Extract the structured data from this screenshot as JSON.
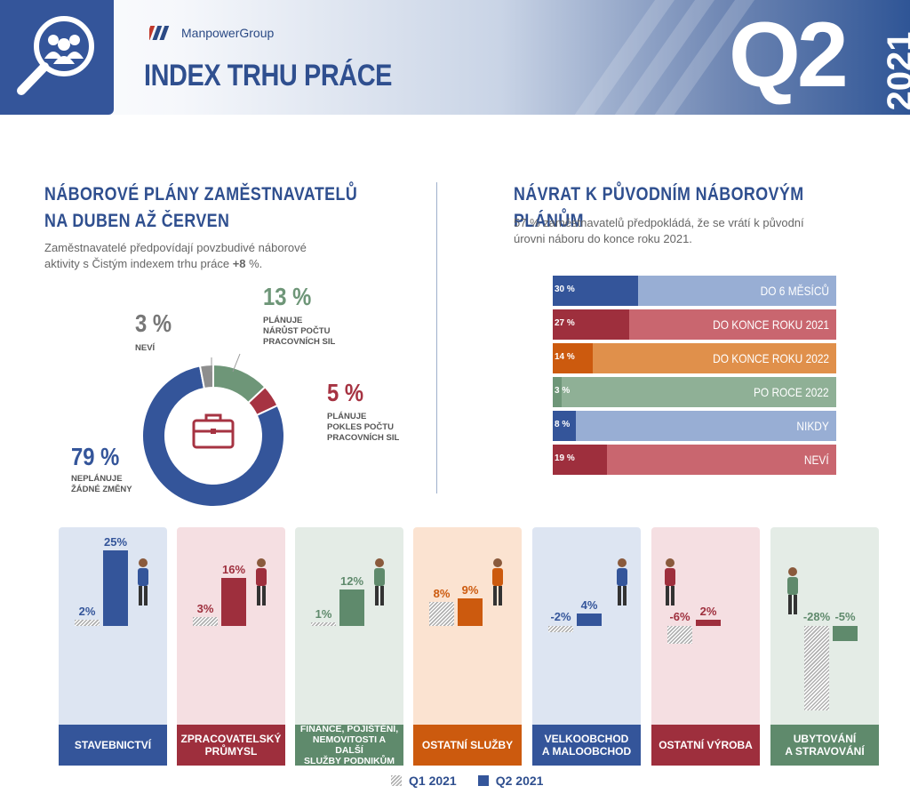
{
  "header": {
    "brand": "ManpowerGroup",
    "title": "INDEX TRHU PRÁCE",
    "quarter": "Q2",
    "year": "2021",
    "colors": {
      "primary": "#2f4f8f",
      "box": "#34559a"
    }
  },
  "left": {
    "title_line1": "NÁBOROVÉ PLÁNY ZAMĚSTNAVATELŮ",
    "title_line2": "NA DUBEN AŽ ČERVEN",
    "desc_line1": "Zaměstnavatelé předpovídají povzbudivé náborové",
    "desc_line2_a": "aktivity s Čistým indexem trhu práce ",
    "desc_line2_b": "+8",
    "desc_line2_c": " %.",
    "labels": {
      "increase_pct": "13 %",
      "increase_l1": "PLÁNUJE",
      "increase_l2": "NÁRŮST POČTU",
      "increase_l3": "PRACOVNÍCH SIL",
      "decrease_pct": "5 %",
      "decrease_l1": "PLÁNUJE",
      "decrease_l2": "POKLES POČTU",
      "decrease_l3": "PRACOVNÍCH SIL",
      "dontknow_pct": "3 %",
      "dontknow_l1": "NEVÍ",
      "nochange_pct": "79 %",
      "nochange_l1": "NEPLÁNUJE",
      "nochange_l2": "ŽÁDNÉ ZMĚNY"
    }
  },
  "right": {
    "title": "NÁVRAT K PŮVODNÍM NÁBOROVÝM PLÁNŮM",
    "desc_line1": "57 % zaměstnavatelů předpokládá, že se vrátí k původní",
    "desc_line2": "úrovni náboru do konce roku 2021."
  },
  "legend": {
    "q1": "Q1 2021",
    "q2": "Q2 2021"
  },
  "chart_data": [
    {
      "type": "pie",
      "slices": [
        {
          "name": "PLÁNUJE NÁRŮST POČTU PRACOVNÍCH SIL",
          "value": 13,
          "color": "#6e9678"
        },
        {
          "name": "PLÁNUJE POKLES POČTU PRACOVNÍCH SIL",
          "value": 5,
          "color": "#a63342"
        },
        {
          "name": "NEPLÁNUJE ŽÁDNÉ ZMĚNY",
          "value": 79,
          "color": "#34559a"
        },
        {
          "name": "NEVÍ",
          "value": 3,
          "color": "#8e8e8e"
        }
      ]
    },
    {
      "type": "bar",
      "orientation": "horizontal",
      "categories": [
        "DO 6 MĚSÍCŮ",
        "DO KONCE ROKU 2021",
        "DO KONCE ROKU 2022",
        "PO ROCE 2022",
        "NIKDY",
        "NEVÍ"
      ],
      "values": [
        30,
        27,
        14,
        3,
        8,
        19
      ],
      "value_labels": [
        "30 %",
        "27 %",
        "14 %",
        "3 %",
        "8 %",
        "19 %"
      ],
      "colors": [
        {
          "fill": "#34559a",
          "rest": "#98aed4"
        },
        {
          "fill": "#9e2f3d",
          "rest": "#c9666f"
        },
        {
          "fill": "#cc5a0e",
          "rest": "#e0904b"
        },
        {
          "fill": "#6e9678",
          "rest": "#8fb096"
        },
        {
          "fill": "#34559a",
          "rest": "#98aed4"
        },
        {
          "fill": "#9e2f3d",
          "rest": "#c9666f"
        }
      ]
    },
    {
      "type": "bar",
      "categories": [
        "STAVEBNICTVÍ",
        "ZPRACOVATELSKÝ PRŮMYSL",
        "FINANCE, POJIŠTĚNÍ, NEMOVITOSTI A DALŠÍ SLUŽBY PODNIKŮM",
        "OSTATNÍ SLUŽBY",
        "VELKOOBCHOD A MALOOBCHOD",
        "OSTATNÍ VÝROBA",
        "UBYTOVÁNÍ A STRAVOVÁNÍ"
      ],
      "category_lines": [
        [
          "STAVEBNICTVÍ"
        ],
        [
          "ZPRACOVATELSKÝ",
          "PRŮMYSL"
        ],
        [
          "FINANCE, POJIŠTĚNÍ,",
          "NEMOVITOSTI A DALŠÍ",
          "SLUŽBY PODNIKŮM"
        ],
        [
          "OSTATNÍ SLUŽBY"
        ],
        [
          "VELKOOBCHOD",
          "A MALOOBCHOD"
        ],
        [
          "OSTATNÍ VÝROBA"
        ],
        [
          "UBYTOVÁNÍ",
          "A STRAVOVÁNÍ"
        ]
      ],
      "series": [
        {
          "name": "Q1 2021",
          "values": [
            2,
            3,
            1,
            8,
            -2,
            -6,
            -28
          ],
          "labels": [
            "2%",
            "3%",
            "1%",
            "8%",
            "-2%",
            "-6%",
            "-28%"
          ]
        },
        {
          "name": "Q2 2021",
          "values": [
            25,
            16,
            12,
            9,
            4,
            2,
            -5
          ],
          "labels": [
            "25%",
            "16%",
            "12%",
            "9%",
            "4%",
            "2%",
            "-5%"
          ]
        }
      ],
      "colors": [
        {
          "dark": "#34559a",
          "panel": "#dde5f2"
        },
        {
          "dark": "#9e2f3d",
          "panel": "#f5dfe2"
        },
        {
          "dark": "#5f8a6c",
          "panel": "#e4ece6"
        },
        {
          "dark": "#cc5a0e",
          "panel": "#fbe3d1"
        },
        {
          "dark": "#34559a",
          "panel": "#dde5f2"
        },
        {
          "dark": "#9e2f3d",
          "panel": "#f5dfe2"
        },
        {
          "dark": "#5f8a6c",
          "panel": "#e4ece6"
        }
      ]
    }
  ]
}
